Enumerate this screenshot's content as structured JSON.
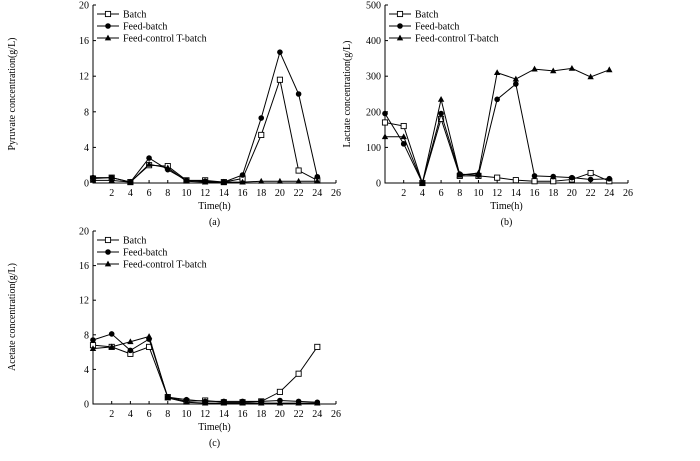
{
  "chart_data": [
    {
      "type": "line",
      "panel_label": "(a)",
      "xlabel": "Time(h)",
      "ylabel": "Pyruvate concentration(g/L)",
      "xlim": [
        0,
        26
      ],
      "ylim": [
        0,
        20
      ],
      "x_ticks": [
        2,
        4,
        6,
        8,
        10,
        12,
        14,
        16,
        18,
        20,
        22,
        24,
        26
      ],
      "y_ticks": [
        0,
        4,
        8,
        12,
        16,
        20
      ],
      "legend": "top-left",
      "series": [
        {
          "name": "Batch",
          "marker": "open-square",
          "x": [
            0,
            2,
            4,
            6,
            8,
            10,
            12,
            14,
            16,
            18,
            20,
            22,
            24
          ],
          "y": [
            0.5,
            0.6,
            0.1,
            2.0,
            1.9,
            0.3,
            0.3,
            0.1,
            0.5,
            5.4,
            11.6,
            1.4,
            0.3
          ]
        },
        {
          "name": "Feed-batch",
          "marker": "filled-circle",
          "x": [
            0,
            2,
            4,
            6,
            8,
            10,
            12,
            14,
            16,
            18,
            20,
            22,
            24
          ],
          "y": [
            0.6,
            0.6,
            0.1,
            2.8,
            1.5,
            0.3,
            0.2,
            0.1,
            0.9,
            7.3,
            14.7,
            10.0,
            0.7
          ]
        },
        {
          "name": "Feed-control T-batch",
          "marker": "filled-triangle",
          "x": [
            0,
            2,
            4,
            6,
            8,
            10,
            12,
            14,
            16,
            18,
            20,
            22,
            24
          ],
          "y": [
            0.3,
            0.3,
            0.1,
            2.1,
            1.7,
            0.2,
            0.1,
            0.1,
            0.1,
            0.2,
            0.2,
            0.2,
            0.2
          ]
        }
      ]
    },
    {
      "type": "line",
      "panel_label": "(b)",
      "xlabel": "Time(h)",
      "ylabel": "Lactate concentration(g/L)",
      "xlim": [
        0,
        26
      ],
      "ylim": [
        0,
        500
      ],
      "x_ticks": [
        2,
        4,
        6,
        8,
        10,
        12,
        14,
        16,
        18,
        20,
        22,
        24,
        26
      ],
      "y_ticks": [
        0,
        100,
        200,
        300,
        400,
        500
      ],
      "legend": "top-left",
      "series": [
        {
          "name": "Batch",
          "marker": "open-square",
          "x": [
            0,
            2,
            4,
            6,
            8,
            10,
            12,
            14,
            16,
            18,
            20,
            22,
            24
          ],
          "y": [
            170,
            160,
            0,
            180,
            20,
            20,
            15,
            8,
            5,
            5,
            10,
            28,
            5
          ]
        },
        {
          "name": "Feed-batch",
          "marker": "filled-circle",
          "x": [
            0,
            2,
            4,
            6,
            8,
            10,
            12,
            14,
            16,
            18,
            20,
            22,
            24
          ],
          "y": [
            195,
            110,
            0,
            195,
            25,
            22,
            235,
            278,
            20,
            18,
            15,
            10,
            12
          ]
        },
        {
          "name": "Feed-control T-batch",
          "marker": "filled-triangle",
          "x": [
            0,
            2,
            4,
            6,
            8,
            10,
            12,
            14,
            16,
            18,
            20,
            22,
            24
          ],
          "y": [
            130,
            130,
            0,
            235,
            22,
            28,
            310,
            292,
            320,
            315,
            322,
            298,
            318
          ]
        }
      ]
    },
    {
      "type": "line",
      "panel_label": "(c)",
      "xlabel": "Time(h)",
      "ylabel": "Acetate concentration(g/L)",
      "xlim": [
        0,
        26
      ],
      "ylim": [
        0,
        20
      ],
      "x_ticks": [
        2,
        4,
        6,
        8,
        10,
        12,
        14,
        16,
        18,
        20,
        22,
        24,
        26
      ],
      "y_ticks": [
        0,
        4,
        8,
        12,
        16,
        20
      ],
      "legend": "top-left",
      "series": [
        {
          "name": "Batch",
          "marker": "open-square",
          "x": [
            0,
            2,
            4,
            6,
            8,
            10,
            12,
            14,
            16,
            18,
            20,
            22,
            24
          ],
          "y": [
            6.8,
            6.6,
            5.8,
            6.6,
            0.8,
            0.3,
            0.4,
            0.2,
            0.2,
            0.3,
            1.4,
            3.5,
            6.6
          ]
        },
        {
          "name": "Feed-batch",
          "marker": "filled-circle",
          "x": [
            0,
            2,
            4,
            6,
            8,
            10,
            12,
            14,
            16,
            18,
            20,
            22,
            24
          ],
          "y": [
            7.4,
            8.1,
            6.2,
            7.5,
            0.8,
            0.5,
            0.3,
            0.3,
            0.3,
            0.3,
            0.4,
            0.3,
            0.2
          ]
        },
        {
          "name": "Feed-control T-batch",
          "marker": "filled-triangle",
          "x": [
            0,
            2,
            4,
            6,
            8,
            10,
            12,
            14,
            16,
            18,
            20,
            22,
            24
          ],
          "y": [
            6.4,
            6.6,
            7.2,
            7.8,
            0.7,
            0.2,
            0.1,
            0.1,
            0.1,
            0.1,
            0.1,
            0.1,
            0.1
          ]
        }
      ]
    }
  ]
}
